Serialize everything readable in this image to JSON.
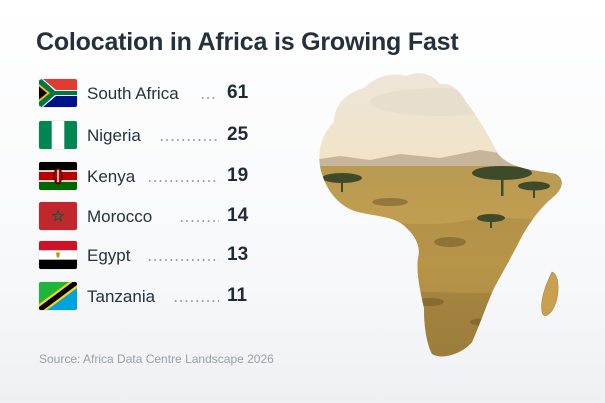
{
  "chart_data": {
    "type": "table",
    "title": "Colocation in Africa is Growing Fast",
    "categories": [
      "South Africa",
      "Nigeria",
      "Kenya",
      "Morocco",
      "Egypt",
      "Tanzania"
    ],
    "values": [
      61,
      25,
      19,
      14,
      13,
      11
    ],
    "rows": [
      {
        "country": "South Africa",
        "value": "61",
        "flag": "south-africa-flag"
      },
      {
        "country": "Nigeria",
        "value": "25",
        "flag": "nigeria-flag"
      },
      {
        "country": "Kenya",
        "value": "19",
        "flag": "kenya-flag"
      },
      {
        "country": "Morocco",
        "value": "14",
        "flag": "morocco-flag"
      },
      {
        "country": "Egypt",
        "value": "13",
        "flag": "egypt-flag"
      },
      {
        "country": "Tanzania",
        "value": "11",
        "flag": "tanzania-flag"
      }
    ],
    "source": "Source: Africa Data Centre Landscape 2026"
  },
  "colors": {
    "title": "#24303c",
    "dots": "#9aa3ad",
    "source": "#98a1ab",
    "savanna": "#c8a04e",
    "sky": "#f3e2c3"
  }
}
